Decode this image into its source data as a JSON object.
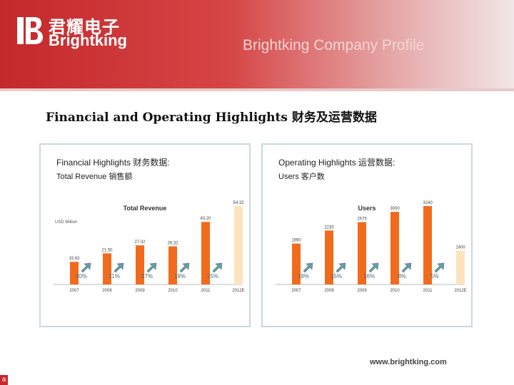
{
  "header": {
    "logo_cn": "君耀电子",
    "logo_en": "Brightking",
    "profile_title": "Brightking Company Profile"
  },
  "page_title": "Financial and Operating Highlights 财务及运营数据",
  "panels": {
    "left": {
      "heading": "Financial Highlights 财务数据:",
      "subheading": "Total Revenue 销售额"
    },
    "right": {
      "heading": "Operating Highlights 运营数据:",
      "subheading": "Users 客户数"
    }
  },
  "footer": {
    "website": "www.brightking.com",
    "corner_label": "a"
  },
  "colors": {
    "bar": "#f26b1d",
    "bar_forecast": "#fde3bd",
    "arrow": "#6c9aa6",
    "growth_text": "#3a6f7a"
  },
  "chart_data": [
    {
      "type": "bar",
      "title": "Total Revenue",
      "unit_label": "USD Million",
      "categories": [
        "2007",
        "2008",
        "2009",
        "2010",
        "2011",
        "2012E"
      ],
      "values": [
        15.63,
        21.5,
        27.02,
        26.32,
        43.2,
        54.15
      ],
      "value_labels": [
        "15.63",
        "21.50",
        "27.02",
        "26.32",
        "43.20",
        "54.15"
      ],
      "growth": [
        "50%",
        "21%",
        "27%",
        "19%",
        "25%"
      ],
      "forecast_index": 5
    },
    {
      "type": "bar",
      "title": "Users",
      "categories": [
        "2007",
        "2008",
        "2009",
        "2010",
        "2011",
        "2012E"
      ],
      "values": [
        1690,
        2230,
        2575,
        3000,
        3240,
        1400
      ],
      "value_labels": [
        "1690",
        "2230",
        "2575",
        "3000",
        "3240",
        "1400"
      ],
      "growth": [
        "18%",
        "15%",
        "16%",
        "8%",
        "5%"
      ],
      "forecast_index": 5
    }
  ]
}
